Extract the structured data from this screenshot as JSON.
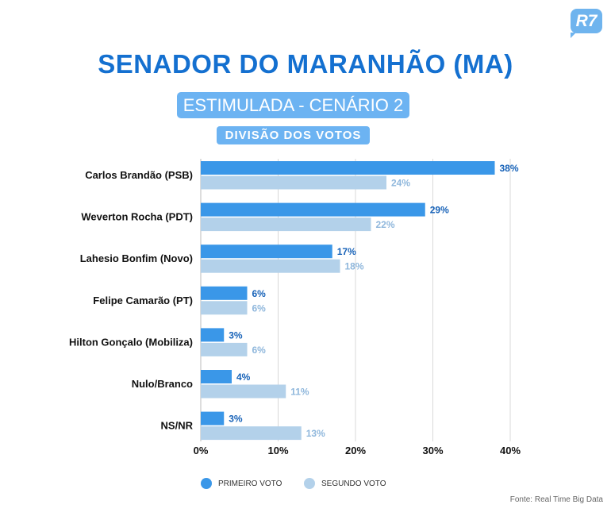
{
  "logo": "R7",
  "title": "SENADOR DO MARANHÃO (MA)",
  "subtitle": "ESTIMULADA - CENÁRIO 2",
  "section": "DIVISÃO DOS VOTOS",
  "source": "Fonte: Real Time Big Data",
  "colors": {
    "primeiro": "#3a97e8",
    "segundo": "#b3d1ea",
    "primeiro_label": "#1762b8",
    "segundo_label": "#8fb7dc"
  },
  "chart_data": {
    "type": "bar",
    "orientation": "horizontal",
    "categories": [
      "Carlos Brandão (PSB)",
      "Weverton Rocha (PDT)",
      "Lahesio Bonfim (Novo)",
      "Felipe Camarão (PT)",
      "Hilton Gonçalo (Mobiliza)",
      "Nulo/Branco",
      "NS/NR"
    ],
    "series": [
      {
        "name": "PRIMEIRO VOTO",
        "values": [
          38,
          29,
          17,
          6,
          3,
          4,
          3
        ]
      },
      {
        "name": "SEGUNDO VOTO",
        "values": [
          24,
          22,
          18,
          6,
          6,
          11,
          13
        ]
      }
    ],
    "xlim": [
      0,
      40
    ],
    "xticks": [
      "0%",
      "10%",
      "20%",
      "30%",
      "40%"
    ],
    "grid": true,
    "legend": "bottom"
  }
}
